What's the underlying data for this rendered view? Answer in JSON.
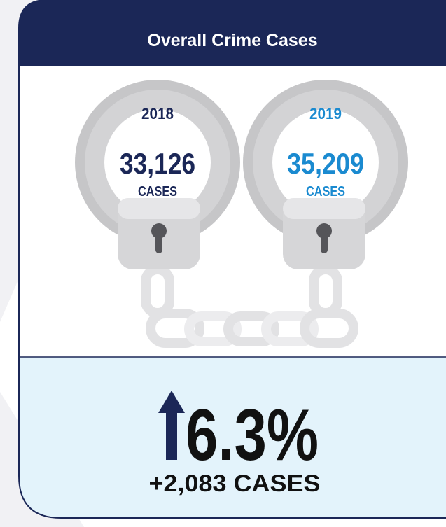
{
  "header": {
    "title": "Overall Crime Cases"
  },
  "items": [
    {
      "year": "2018",
      "count": "33,126",
      "unit": "CASES"
    },
    {
      "year": "2019",
      "count": "35,209",
      "unit": "CASES"
    }
  ],
  "summary": {
    "change": "6.3%",
    "difference": "+2,083 CASES"
  }
}
